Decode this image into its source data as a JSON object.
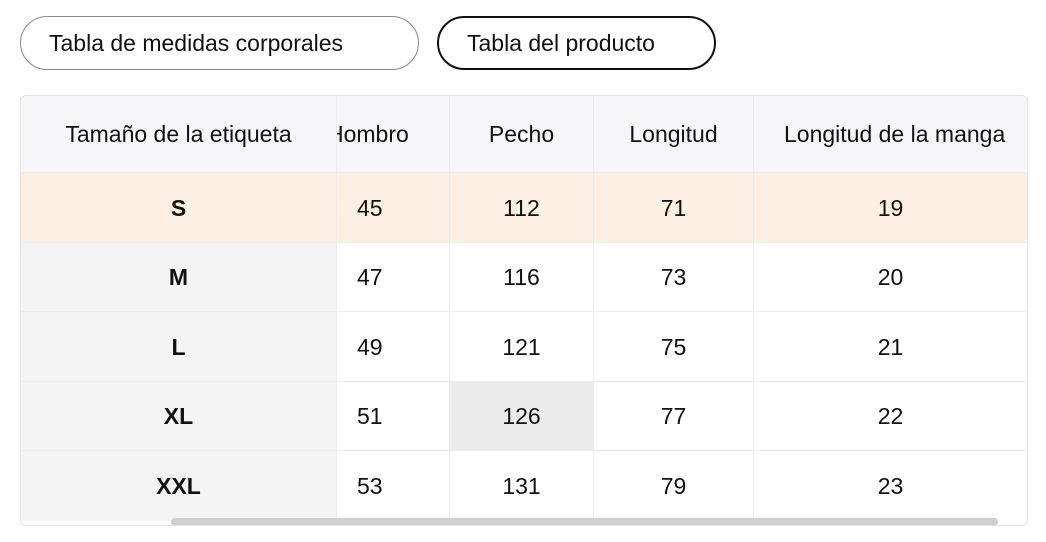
{
  "tabs": [
    {
      "label": "Tabla de medidas corporales",
      "selected": false
    },
    {
      "label": "Tabla del producto",
      "selected": true
    }
  ],
  "table": {
    "headers": [
      "Tamaño de la etiqueta",
      "Hombro",
      "Pecho",
      "Longitud",
      "Longitud de la manga"
    ],
    "rows": [
      [
        "S",
        "45",
        "112",
        "71",
        "19"
      ],
      [
        "M",
        "47",
        "116",
        "73",
        "20"
      ],
      [
        "L",
        "49",
        "121",
        "75",
        "21"
      ],
      [
        "XL",
        "51",
        "126",
        "77",
        "22"
      ],
      [
        "XXL",
        "53",
        "131",
        "79",
        "23"
      ]
    ],
    "highlighted_row": 0
  },
  "colors": {
    "highlight_row": "#fdefe1",
    "header_bg": "#f6f6f8",
    "first_col_bg": "#f4f4f4"
  }
}
